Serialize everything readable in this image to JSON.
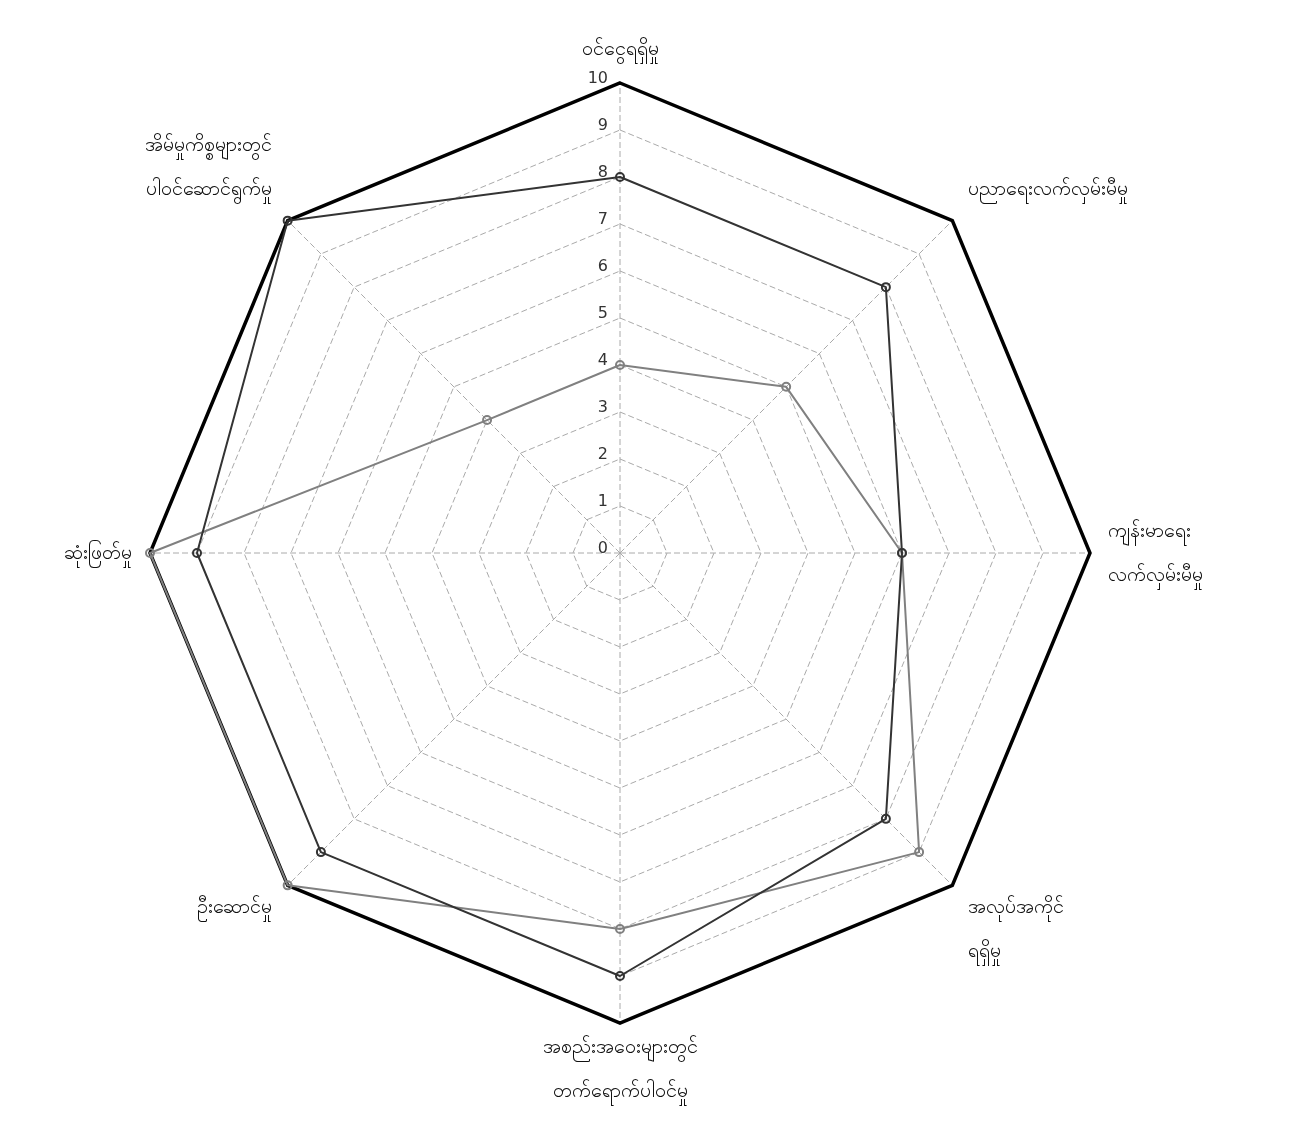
{
  "chart_data": {
    "type": "radar",
    "categories": [
      "ဝင်ငွေရရှိမှု",
      "ပညာရေးလက်လှမ်းမီမှု",
      "ကျန်းမာရေး\nလက်လှမ်းမီမှု",
      "အလုပ်အကိုင်\nရရှိမှု",
      "အစည်းအဝေးများတွင်\nတက်ရောက်ပါဝင်မှု",
      "ဦးဆောင်မှု",
      "ဆုံးဖြတ်မှု",
      "အိမ်မှုကိစ္စများတွင်\nပါဝင်ဆောင်ရွက်မှု"
    ],
    "series": [
      {
        "color": "#333333",
        "values": [
          8,
          8,
          6,
          8,
          9,
          9,
          9,
          10
        ],
        "marker": "circle"
      },
      {
        "color": "#808080",
        "values": [
          4,
          5,
          6,
          9,
          8,
          10,
          10,
          4
        ],
        "marker": "circle"
      }
    ],
    "ylim": [
      0,
      10
    ],
    "yticks": [
      0,
      1,
      2,
      3,
      4,
      5,
      6,
      7,
      8,
      9,
      10
    ],
    "grid": true,
    "legend": false
  }
}
